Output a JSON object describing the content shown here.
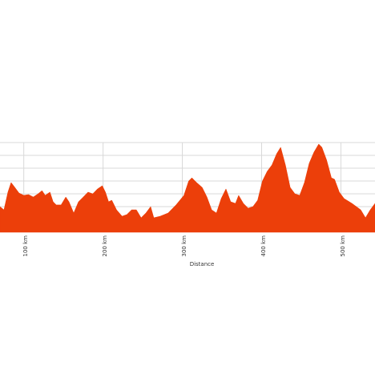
{
  "chart_data": {
    "type": "area",
    "x_label": "Distance",
    "color": "#ec3f0a",
    "grid": true,
    "x": [
      70,
      75,
      80,
      84,
      88,
      94,
      100,
      106,
      112,
      118,
      123,
      127,
      133,
      137,
      141,
      147,
      153,
      157,
      163,
      169,
      175,
      181,
      187,
      193,
      199,
      203,
      207,
      211,
      217,
      224,
      230,
      236,
      242,
      248,
      254,
      260,
      264,
      272,
      282,
      292,
      302,
      308,
      312,
      318,
      325,
      331,
      337,
      343,
      349,
      355,
      361,
      367,
      371,
      377,
      383,
      389,
      395,
      401,
      407,
      413,
      419,
      424,
      430,
      436,
      442,
      448,
      454,
      460,
      466,
      472,
      476,
      482,
      488,
      492,
      498,
      504,
      514,
      525,
      531,
      537,
      543
    ],
    "values": [
      200,
      175,
      313,
      388,
      356,
      306,
      288,
      294,
      275,
      300,
      325,
      288,
      313,
      238,
      213,
      213,
      275,
      238,
      150,
      238,
      275,
      313,
      300,
      338,
      363,
      313,
      238,
      250,
      175,
      125,
      138,
      175,
      175,
      113,
      150,
      200,
      113,
      125,
      150,
      213,
      288,
      400,
      425,
      388,
      350,
      275,
      175,
      150,
      263,
      338,
      238,
      225,
      288,
      225,
      188,
      200,
      250,
      400,
      475,
      525,
      613,
      663,
      525,
      350,
      300,
      288,
      388,
      538,
      625,
      688,
      663,
      563,
      425,
      413,
      313,
      263,
      225,
      175,
      113,
      175,
      225
    ],
    "xlim": [
      70,
      543
    ],
    "xticks": [
      {
        "value": 100,
        "label": "100 km"
      },
      {
        "value": 200,
        "label": "200 km"
      },
      {
        "value": 300,
        "label": "300 km"
      },
      {
        "value": 400,
        "label": "400 km"
      },
      {
        "value": 500,
        "label": "500 km"
      }
    ],
    "ylim": [
      0,
      700
    ],
    "yticks": [
      100,
      200,
      300,
      400,
      500,
      600,
      700
    ]
  }
}
